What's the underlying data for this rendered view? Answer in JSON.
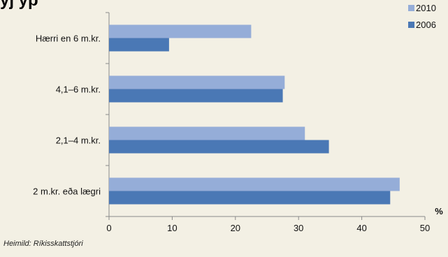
{
  "title_fragment": "yj      yp",
  "source": "Heimild: Ríkisskattstjóri",
  "chart_data": {
    "type": "bar",
    "orientation": "horizontal",
    "categories": [
      "Hærri en 6 m.kr.",
      "4,1–6 m.kr.",
      "2,1–4  m.kr.",
      "2  m.kr. eða lægri"
    ],
    "series": [
      {
        "name": "2010",
        "values": [
          22.5,
          27.8,
          31.0,
          46.0
        ],
        "color": "#95add8"
      },
      {
        "name": "2006",
        "values": [
          9.5,
          27.5,
          34.8,
          44.5
        ],
        "color": "#4a78b5"
      }
    ],
    "x_ticks": [
      "0",
      "10",
      "20",
      "30",
      "40",
      "50"
    ],
    "xlim": [
      0,
      50
    ],
    "x_unit": "%",
    "grid": false,
    "legend_position": "top-right"
  }
}
